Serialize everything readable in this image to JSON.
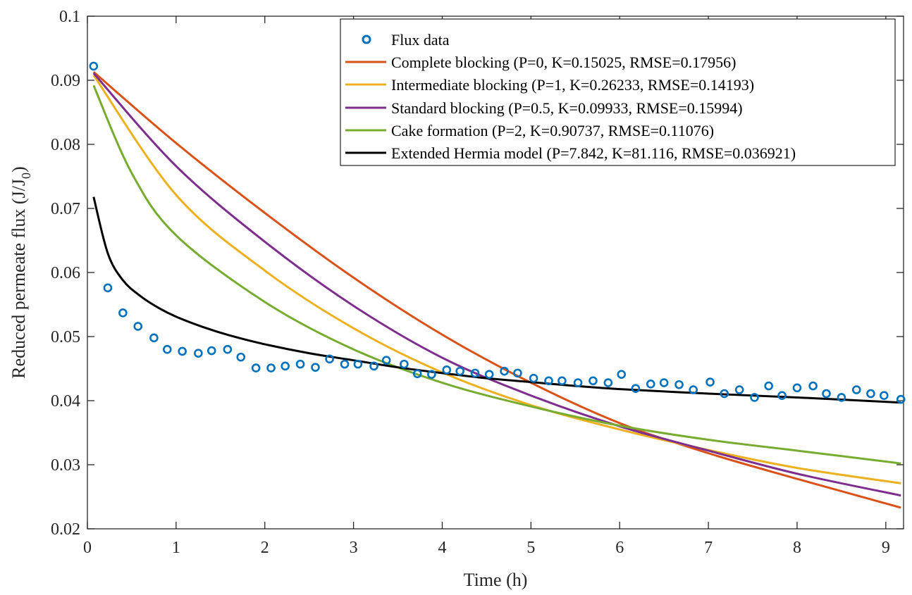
{
  "chart_data": {
    "type": "line",
    "xlabel": "Time (h)",
    "ylabel": "Reduced permeate flux (J/J",
    "ylabel_subscript": "0",
    "ylabel_suffix": ")",
    "xlim": [
      0,
      9.2
    ],
    "ylim": [
      0.02,
      0.1
    ],
    "xticks": [
      0,
      1,
      2,
      3,
      4,
      5,
      6,
      7,
      8,
      9
    ],
    "xtick_labels": [
      "0",
      "1",
      "2",
      "3",
      "4",
      "5",
      "6",
      "7",
      "8",
      "9"
    ],
    "yticks": [
      0.02,
      0.03,
      0.04,
      0.05,
      0.06,
      0.07,
      0.08,
      0.09,
      0.1
    ],
    "ytick_labels": [
      "0.02",
      "0.03",
      "0.04",
      "0.05",
      "0.06",
      "0.07",
      "0.08",
      "0.09",
      "0.1"
    ],
    "grid": false,
    "legend_position": "top-right",
    "scatter": {
      "name": "Flux data",
      "color": "#0072BD",
      "x": [
        0.07,
        0.23,
        0.4,
        0.57,
        0.75,
        0.9,
        1.07,
        1.25,
        1.4,
        1.58,
        1.73,
        1.9,
        2.07,
        2.23,
        2.4,
        2.57,
        2.73,
        2.9,
        3.05,
        3.23,
        3.37,
        3.57,
        3.72,
        3.88,
        4.05,
        4.2,
        4.37,
        4.53,
        4.7,
        4.85,
        5.03,
        5.2,
        5.35,
        5.53,
        5.7,
        5.87,
        6.02,
        6.18,
        6.35,
        6.5,
        6.67,
        6.83,
        7.02,
        7.18,
        7.35,
        7.52,
        7.68,
        7.83,
        8.0,
        8.18,
        8.33,
        8.5,
        8.67,
        8.83,
        8.98,
        9.17
      ],
      "y": [
        0.0922,
        0.0576,
        0.0537,
        0.0516,
        0.0498,
        0.048,
        0.0477,
        0.0474,
        0.0478,
        0.048,
        0.0468,
        0.0451,
        0.0451,
        0.0454,
        0.0457,
        0.0452,
        0.0465,
        0.0457,
        0.0457,
        0.0454,
        0.0463,
        0.0457,
        0.0442,
        0.0441,
        0.0448,
        0.0446,
        0.0443,
        0.0441,
        0.0446,
        0.0443,
        0.0435,
        0.0431,
        0.0431,
        0.0428,
        0.0431,
        0.0428,
        0.0441,
        0.0419,
        0.0426,
        0.0428,
        0.0425,
        0.0417,
        0.0429,
        0.0411,
        0.0417,
        0.0405,
        0.0423,
        0.0408,
        0.042,
        0.0423,
        0.0411,
        0.0405,
        0.0417,
        0.0411,
        0.0408,
        0.0402
      ]
    },
    "series": [
      {
        "name": "Complete blocking (P=0, K=0.15025, RMSE=0.17956)",
        "color": "#D95319",
        "x": [
          0.07,
          1,
          2,
          3,
          4,
          5,
          6,
          7,
          8,
          9.17
        ],
        "y": [
          0.0913,
          0.0802,
          0.0693,
          0.0592,
          0.0503,
          0.0428,
          0.0365,
          0.0318,
          0.0278,
          0.0233
        ]
      },
      {
        "name": "Intermediate blocking (P=1, K=0.26233, RMSE=0.14193)",
        "color": "#EDB120",
        "x": [
          0.07,
          1,
          2,
          3,
          4,
          5,
          6,
          7,
          8,
          9.17
        ],
        "y": [
          0.0908,
          0.0721,
          0.0603,
          0.0513,
          0.0444,
          0.0393,
          0.0355,
          0.0323,
          0.0295,
          0.0271
        ]
      },
      {
        "name": "Standard blocking (P=0.5, K=0.09933, RMSE=0.15994)",
        "color": "#7E2F8E",
        "x": [
          0.07,
          1,
          2,
          3,
          4,
          5,
          6,
          7,
          8,
          9.17
        ],
        "y": [
          0.0911,
          0.0766,
          0.0648,
          0.0548,
          0.0467,
          0.0408,
          0.036,
          0.0322,
          0.0286,
          0.0252
        ]
      },
      {
        "name": "Cake formation (P=2, K=0.90737, RMSE=0.11076)",
        "color": "#77AC30",
        "x": [
          0.07,
          0.5,
          1,
          2,
          3,
          4,
          5,
          6,
          7,
          8,
          9.17
        ],
        "y": [
          0.0892,
          0.0755,
          0.0658,
          0.0554,
          0.048,
          0.0428,
          0.0391,
          0.0361,
          0.0339,
          0.0322,
          0.0302
        ]
      },
      {
        "name": "Extended Hermia model (P=7.842, K=81.116, RMSE=0.036921)",
        "color": "#000000",
        "x": [
          0.07,
          0.23,
          0.4,
          0.6,
          0.8,
          1,
          1.3,
          1.6,
          2,
          2.5,
          3,
          3.5,
          4,
          4.5,
          5,
          5.5,
          6,
          7,
          8,
          9.17
        ],
        "y": [
          0.0718,
          0.063,
          0.0588,
          0.0563,
          0.0545,
          0.0531,
          0.0515,
          0.0502,
          0.0488,
          0.0474,
          0.0463,
          0.0452,
          0.0443,
          0.0435,
          0.0429,
          0.0423,
          0.0418,
          0.0411,
          0.0405,
          0.0397
        ]
      }
    ]
  }
}
